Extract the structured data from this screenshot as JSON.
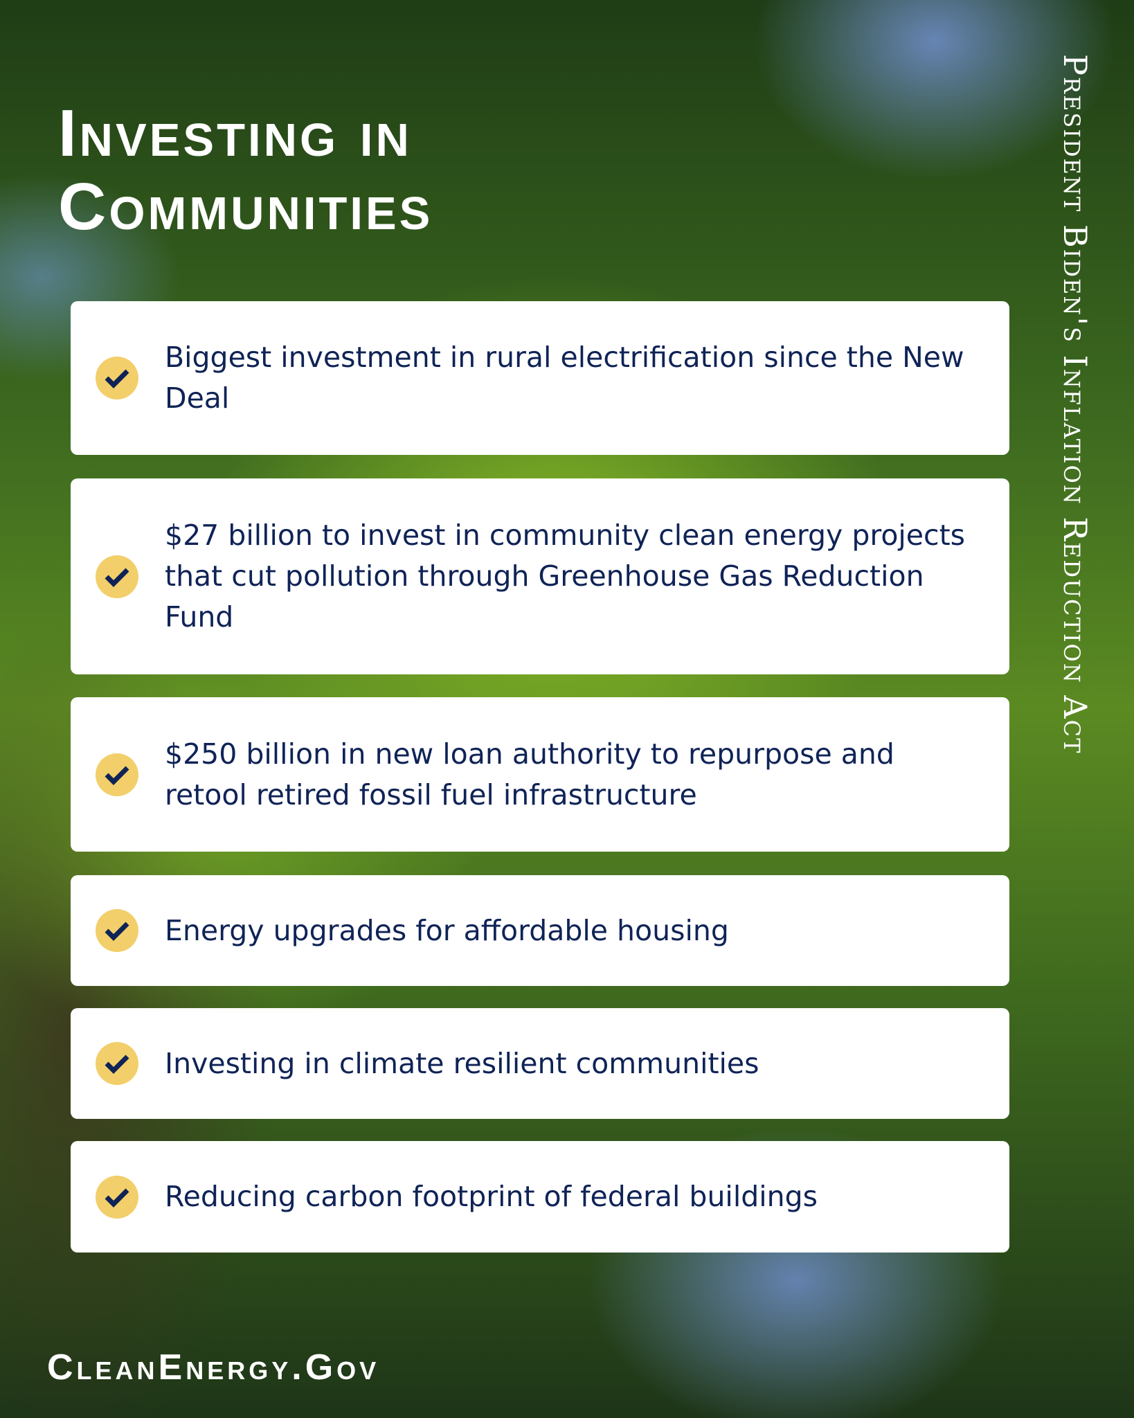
{
  "title_line1": "Investing in",
  "title_line2": "Communities",
  "side_title": "President Biden's Inflation Reduction Act",
  "items": [
    {
      "text": "Biggest investment in rural electrification since the New Deal"
    },
    {
      "text": "$27 billion to invest in community clean energy projects that cut pollution through Greenhouse Gas Reduction Fund"
    },
    {
      "text": "$250 billion in new loan authority to repurpose and retool retired fossil fuel infrastructure"
    },
    {
      "text": "Energy upgrades for affordable housing"
    },
    {
      "text": "Investing in climate resilient communities"
    },
    {
      "text": "Reducing carbon footprint of federal buildings"
    }
  ],
  "footer": "CleanEnergy.Gov",
  "colors": {
    "text": "#0f2356",
    "check_bg": "#f2cf6a",
    "card": "#ffffff"
  },
  "icon": "check-circle-icon"
}
